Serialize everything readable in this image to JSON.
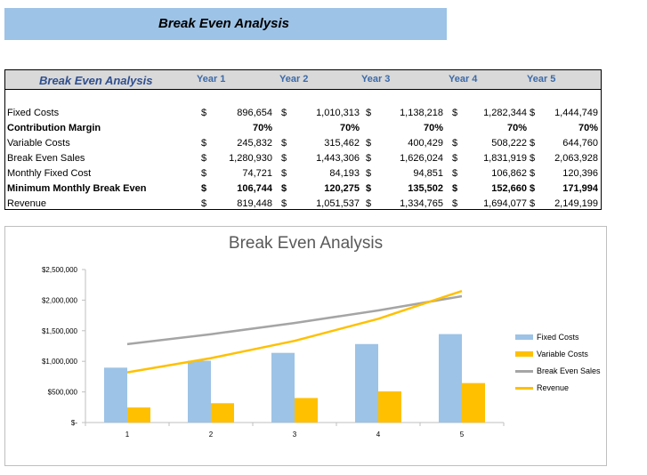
{
  "sheet": {
    "banner_title": "Break Even Analysis"
  },
  "table": {
    "header_label": "Break Even Analysis",
    "years": [
      "Year 1",
      "Year 2",
      "Year 3",
      "Year 4",
      "Year 5"
    ],
    "rows": [
      {
        "label": "Fixed Costs",
        "bold": false,
        "currency": true,
        "values": [
          "896,654",
          "1,010,313",
          "1,138,218",
          "1,282,344",
          "1,444,749"
        ]
      },
      {
        "label": "Contribution Margin",
        "bold": true,
        "currency": false,
        "values": [
          "70%",
          "70%",
          "70%",
          "70%",
          "70%"
        ]
      },
      {
        "label": "Variable Costs",
        "bold": false,
        "currency": true,
        "values": [
          "245,832",
          "315,462",
          "400,429",
          "508,222",
          "644,760"
        ]
      },
      {
        "label": "Break Even Sales",
        "bold": false,
        "currency": true,
        "values": [
          "1,280,930",
          "1,443,306",
          "1,626,024",
          "1,831,919",
          "2,063,928"
        ]
      },
      {
        "label": "Monthly Fixed Cost",
        "bold": false,
        "currency": true,
        "values": [
          "74,721",
          "84,193",
          "94,851",
          "106,862",
          "120,396"
        ]
      },
      {
        "label": "Minimum Monthly Break Even",
        "bold": true,
        "currency": true,
        "values": [
          "106,744",
          "120,275",
          "135,502",
          "152,660",
          "171,994"
        ]
      },
      {
        "label": "Revenue",
        "bold": false,
        "currency": true,
        "values": [
          "819,448",
          "1,051,537",
          "1,334,765",
          "1,694,077",
          "2,149,199"
        ]
      }
    ],
    "currency_symbol": "$"
  },
  "chart_data": {
    "type": "bar",
    "title": "Break Even Analysis",
    "categories": [
      "1",
      "2",
      "3",
      "4",
      "5"
    ],
    "ylim": [
      0,
      2500000
    ],
    "yticks": [
      0,
      500000,
      1000000,
      1500000,
      2000000,
      2500000
    ],
    "ytick_labels": [
      "$-",
      "$500,000",
      "$1,000,000",
      "$1,500,000",
      "$2,000,000",
      "$2,500,000"
    ],
    "grid": false,
    "legend_position": "right",
    "series": [
      {
        "name": "Fixed Costs",
        "kind": "bar",
        "color": "#9dc3e6",
        "values": [
          896654,
          1010313,
          1138218,
          1282344,
          1444749
        ]
      },
      {
        "name": "Variable Costs",
        "kind": "bar",
        "color": "#ffc000",
        "values": [
          245832,
          315462,
          400429,
          508222,
          644760
        ]
      },
      {
        "name": "Break Even Sales",
        "kind": "line",
        "color": "#a5a5a5",
        "values": [
          1280930,
          1443306,
          1626024,
          1831919,
          2063928
        ]
      },
      {
        "name": "Revenue",
        "kind": "line",
        "color": "#ffc000",
        "values": [
          819448,
          1051537,
          1334765,
          1694077,
          2149199
        ]
      }
    ]
  }
}
